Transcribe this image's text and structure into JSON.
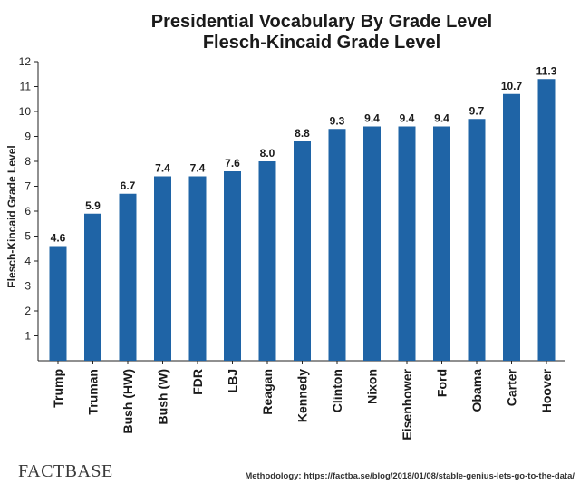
{
  "chart_data": {
    "type": "bar",
    "title": "Presidential Vocabulary By Grade Level",
    "subtitle": "Flesch-Kincaid Grade Level",
    "xlabel": "",
    "ylabel": "Flesch-Kincaid Grade Level",
    "ylim": [
      0,
      12
    ],
    "yticks": [
      "1",
      "2",
      "3",
      "4",
      "5",
      "6",
      "7",
      "8",
      "9",
      "10",
      "11",
      "12"
    ],
    "categories": [
      "Trump",
      "Truman",
      "Bush (HW)",
      "Bush (W)",
      "FDR",
      "LBJ",
      "Reagan",
      "Kennedy",
      "Clinton",
      "Nixon",
      "Eisenhower",
      "Ford",
      "Obama",
      "Carter",
      "Hoover"
    ],
    "values": [
      4.6,
      5.9,
      6.7,
      7.4,
      7.4,
      7.6,
      8.0,
      8.8,
      9.3,
      9.4,
      9.4,
      9.4,
      9.7,
      10.7,
      11.3
    ],
    "data_labels": [
      "4.6",
      "5.9",
      "6.7",
      "7.4",
      "7.4",
      "7.6",
      "8.0",
      "8.8",
      "9.3",
      "9.4",
      "9.4",
      "9.4",
      "9.7",
      "10.7",
      "11.3"
    ],
    "bar_color": "#1f64a6",
    "grid": false
  },
  "footer": {
    "brand": "FACTBASE",
    "methodology": "Methodology: https://factba.se/blog/2018/01/08/stable-genius-lets-go-to-the-data/"
  }
}
